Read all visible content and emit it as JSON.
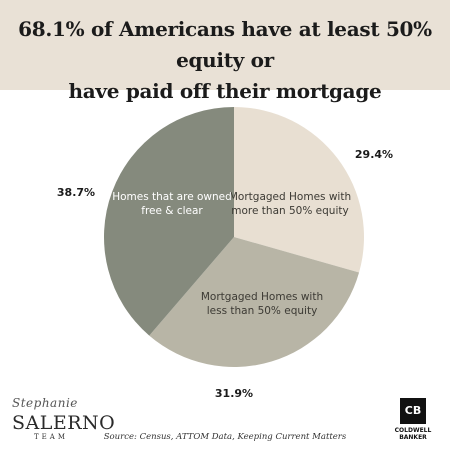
{
  "header": {
    "title_line1": "68.1% of Americans have  at least 50% equity or",
    "title_line2": "have paid off their mortgage",
    "background": "#e9e1d6"
  },
  "chart_data": {
    "type": "pie",
    "title": "68.1% of Americans have  at least 50% equity or have paid off their mortgage",
    "slices": [
      {
        "label_lines": [
          "Mortgaged Homes with",
          "more than 50% equity"
        ],
        "value": 29.4,
        "value_label": "29.4%",
        "color": "#e8dfd2"
      },
      {
        "label_lines": [
          "Mortgaged Homes with",
          "less than 50% equity"
        ],
        "value": 31.9,
        "value_label": "31.9%",
        "color": "#b8b5a6"
      },
      {
        "label_lines": [
          "Homes that are owned",
          "free & clear"
        ],
        "value": 38.7,
        "value_label": "38.7%",
        "color": "#858a7d"
      }
    ],
    "start": "12 o'clock",
    "direction": "clockwise"
  },
  "branding": {
    "script": "Stephanie",
    "name": "SALERNO",
    "team": "TEAM",
    "broker_logo": "CB",
    "broker_line1": "COLDWELL",
    "broker_line2": "BANKER"
  },
  "footer": {
    "source": "Source: Census, ATTOM Data, Keeping Current Matters"
  }
}
